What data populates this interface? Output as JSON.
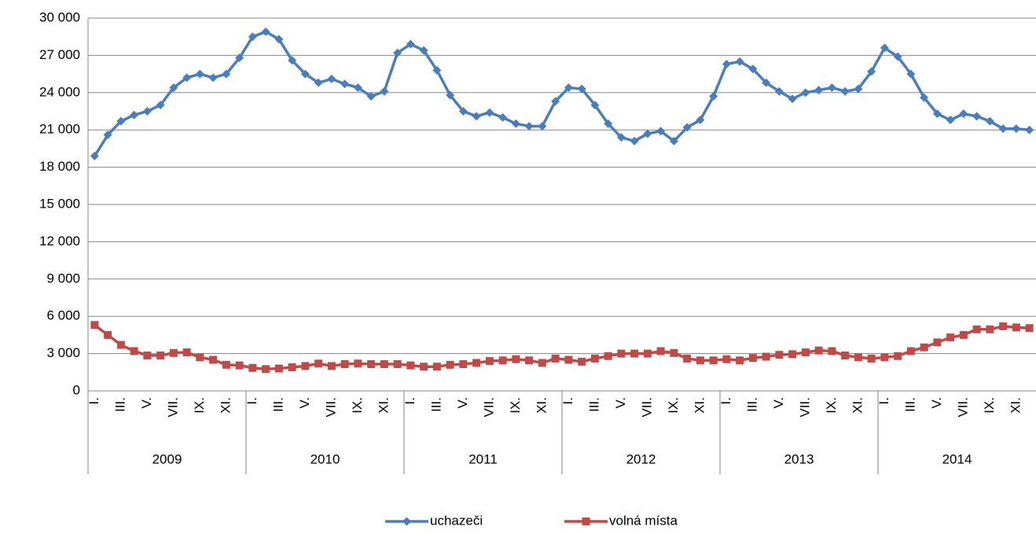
{
  "chart_data": {
    "type": "line",
    "categories": [
      "I.",
      null,
      "III.",
      null,
      "V.",
      null,
      "VII.",
      null,
      "IX.",
      null,
      "XI.",
      null,
      "I.",
      null,
      "III.",
      null,
      "V.",
      null,
      "VII.",
      null,
      "IX.",
      null,
      "XI.",
      null,
      "I.",
      null,
      "III.",
      null,
      "V.",
      null,
      "VII.",
      null,
      "IX.",
      null,
      "XI.",
      null,
      "I.",
      null,
      "III.",
      null,
      "V.",
      null,
      "VII.",
      null,
      "IX.",
      null,
      "XI.",
      null,
      "I.",
      null,
      "III.",
      null,
      "V.",
      null,
      "VII.",
      null,
      "IX.",
      null,
      "XI.",
      null,
      "I.",
      null,
      "III.",
      null,
      "V.",
      null,
      "VII.",
      null,
      "IX.",
      null,
      "XI.",
      null
    ],
    "years": [
      "2009",
      "2010",
      "2011",
      "2012",
      "2013",
      "2014"
    ],
    "series": [
      {
        "name": "uchazeči",
        "color": "#4a7ebb",
        "marker": "diamond",
        "values": [
          18900,
          20600,
          21700,
          22200,
          22500,
          23000,
          24400,
          25200,
          25500,
          25200,
          25500,
          26800,
          28500,
          28900,
          28300,
          26600,
          25500,
          24800,
          25100,
          24700,
          24400,
          23700,
          24100,
          27200,
          27900,
          27400,
          25800,
          23800,
          22500,
          22100,
          22400,
          22000,
          21500,
          21300,
          21300,
          23300,
          24400,
          24300,
          23000,
          21500,
          20400,
          20100,
          20700,
          20900,
          20100,
          21200,
          21800,
          23700,
          26300,
          26500,
          25900,
          24800,
          24100,
          23500,
          24000,
          24200,
          24400,
          24100,
          24300,
          25700,
          27600,
          26900,
          25500,
          23600,
          22300,
          21800,
          22300,
          22100,
          21700,
          21100,
          21100,
          21000
        ]
      },
      {
        "name": "volná místa",
        "color": "#be4b48",
        "marker": "square",
        "values": [
          5300,
          4500,
          3700,
          3200,
          2850,
          2850,
          3050,
          3100,
          2700,
          2500,
          2100,
          2050,
          1850,
          1750,
          1800,
          1900,
          2000,
          2200,
          2000,
          2150,
          2200,
          2150,
          2150,
          2150,
          2050,
          1950,
          1950,
          2100,
          2150,
          2250,
          2400,
          2450,
          2550,
          2450,
          2250,
          2600,
          2500,
          2350,
          2600,
          2800,
          3000,
          3000,
          3000,
          3200,
          3050,
          2600,
          2450,
          2450,
          2550,
          2450,
          2650,
          2750,
          2900,
          2950,
          3100,
          3250,
          3200,
          2850,
          2700,
          2600,
          2700,
          2800,
          3200,
          3500,
          3900,
          4300,
          4500,
          4950,
          4950,
          5200,
          5100,
          5050
        ]
      }
    ],
    "ylim": [
      0,
      30000
    ],
    "yticks": [
      0,
      {
        "value": 3000,
        "label": "3 000"
      },
      {
        "value": 6000,
        "label": "6 000"
      },
      {
        "value": 9000,
        "label": "9 000"
      },
      {
        "value": 12000,
        "label": "12 000"
      },
      {
        "value": 15000,
        "label": "15 000"
      },
      {
        "value": 18000,
        "label": "18 000"
      },
      {
        "value": 21000,
        "label": "21 000"
      },
      {
        "value": 24000,
        "label": "24 000"
      },
      {
        "value": 27000,
        "label": "27 000"
      },
      {
        "value": 30000,
        "label": "30 000"
      }
    ],
    "grid": true,
    "legend": "bottom"
  }
}
